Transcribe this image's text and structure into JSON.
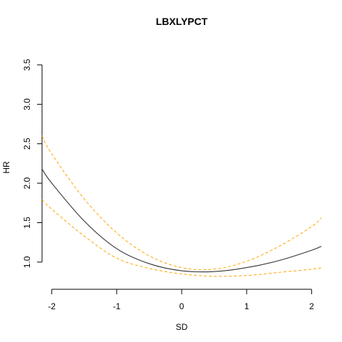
{
  "chart_data": {
    "type": "line",
    "title": "LBXLYPCT",
    "xlabel": "SD",
    "ylabel": "HR",
    "xlim": [
      -2.15,
      2.15
    ],
    "ylim": [
      0.8,
      3.5
    ],
    "x_ticks": [
      -2,
      -1,
      0,
      1,
      2
    ],
    "y_ticks": [
      1.0,
      1.5,
      2.0,
      2.5,
      3.0,
      3.5
    ],
    "x_tick_labels": [
      "-2",
      "-1",
      "0",
      "1",
      "2"
    ],
    "y_tick_labels": [
      "1.0",
      "1.5",
      "2.0",
      "2.5",
      "3.0",
      "3.5"
    ],
    "grid": false,
    "series": [
      {
        "role": "estimate",
        "color": "#333333",
        "dash": "solid",
        "x": [
          -2.15,
          -2.0,
          -1.5,
          -1.0,
          -0.5,
          0.0,
          0.5,
          1.0,
          1.5,
          2.0,
          2.15
        ],
        "y": [
          2.18,
          2.0,
          1.52,
          1.17,
          0.98,
          0.89,
          0.88,
          0.93,
          1.02,
          1.15,
          1.2
        ]
      },
      {
        "role": "upper-ci",
        "color": "#ffa500",
        "dash": "dashed",
        "x": [
          -2.15,
          -2.0,
          -1.5,
          -1.0,
          -0.5,
          0.0,
          0.5,
          1.0,
          1.5,
          2.0,
          2.15
        ],
        "y": [
          2.6,
          2.37,
          1.8,
          1.37,
          1.08,
          0.93,
          0.91,
          1.01,
          1.2,
          1.45,
          1.56
        ]
      },
      {
        "role": "lower-ci",
        "color": "#ffa500",
        "dash": "dashed",
        "x": [
          -2.15,
          -2.0,
          -1.5,
          -1.0,
          -0.5,
          0.0,
          0.5,
          1.0,
          1.5,
          2.0,
          2.15
        ],
        "y": [
          1.79,
          1.67,
          1.33,
          1.05,
          0.92,
          0.85,
          0.82,
          0.83,
          0.87,
          0.91,
          0.93
        ]
      }
    ]
  }
}
